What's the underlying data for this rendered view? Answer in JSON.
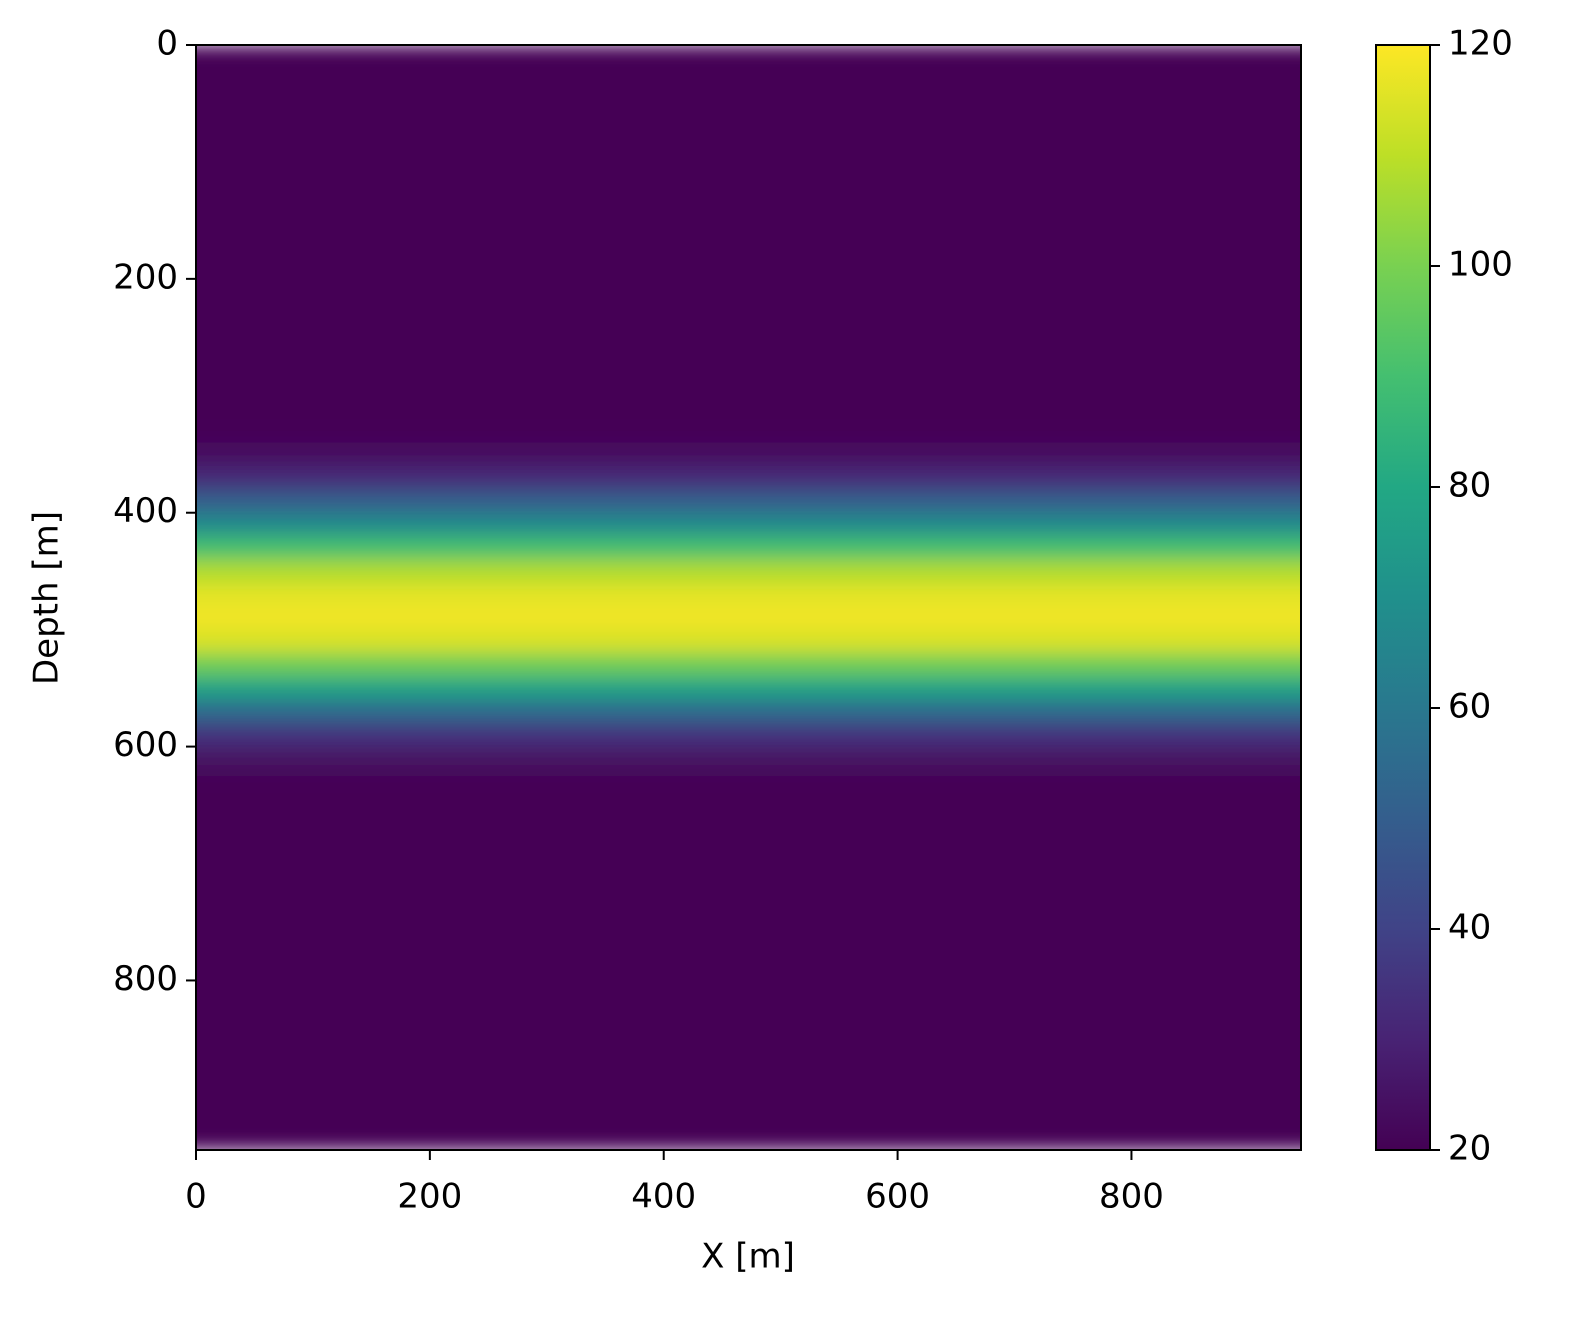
{
  "chart_data": {
    "type": "heatmap",
    "xlabel": "X [m]",
    "ylabel": "Depth [m]",
    "xlim": [
      0,
      945
    ],
    "ylim": [
      945,
      0
    ],
    "xticks": [
      0,
      200,
      400,
      600,
      800
    ],
    "yticks": [
      0,
      200,
      400,
      600,
      800
    ],
    "y_bins": [
      0,
      320,
      340,
      360,
      380,
      400,
      420,
      440,
      460,
      480,
      500,
      520,
      540,
      560,
      580,
      600,
      620,
      640,
      945
    ],
    "z": [
      20,
      21,
      24,
      32,
      50,
      68,
      90,
      108,
      116,
      118,
      114,
      98,
      78,
      55,
      35,
      25,
      21,
      20
    ],
    "colormap": "viridis",
    "clim": [
      20,
      120
    ],
    "cticks": [
      20,
      40,
      60,
      80,
      100,
      120
    ]
  }
}
